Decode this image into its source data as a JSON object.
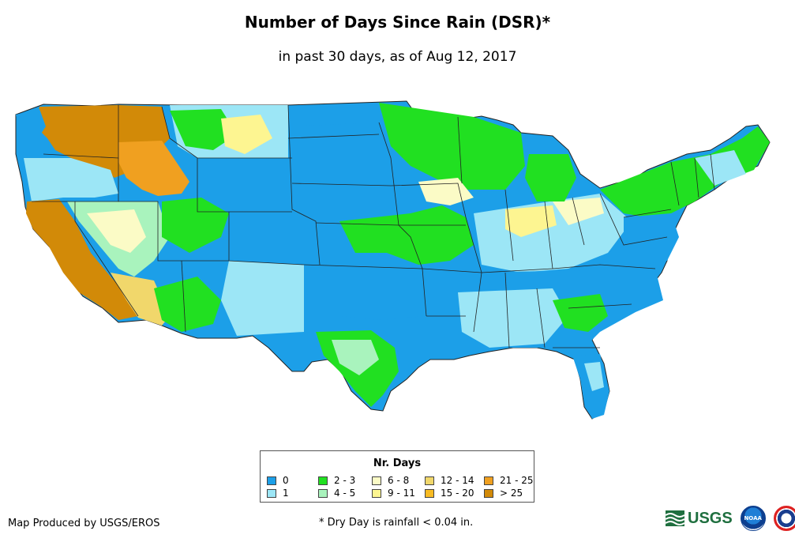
{
  "title": "Number of Days Since Rain (DSR)*",
  "subtitle": "in past 30 days, as of Aug 12, 2017",
  "legend": {
    "title": "Nr. Days",
    "items": [
      {
        "label": "0",
        "color": "#1c9fe8"
      },
      {
        "label": "1",
        "color": "#9ce6f6"
      },
      {
        "label": "2 - 3",
        "color": "#21e021"
      },
      {
        "label": "4 - 5",
        "color": "#a9f3bd"
      },
      {
        "label": "6 - 8",
        "color": "#fbfbc6"
      },
      {
        "label": "9 - 11",
        "color": "#fdf591"
      },
      {
        "label": "12 - 14",
        "color": "#f1d76b"
      },
      {
        "label": "15 - 20",
        "color": "#f8bb23"
      },
      {
        "label": "21 - 25",
        "color": "#f0a020"
      },
      {
        "label": "> 25",
        "color": "#d28a08"
      }
    ]
  },
  "footer": {
    "credit": "Map Produced by USGS/EROS",
    "note": "* Dry Day is rainfall < 0.04 in."
  },
  "logos": {
    "usgs": "USGS",
    "noaa": "NOAA"
  }
}
